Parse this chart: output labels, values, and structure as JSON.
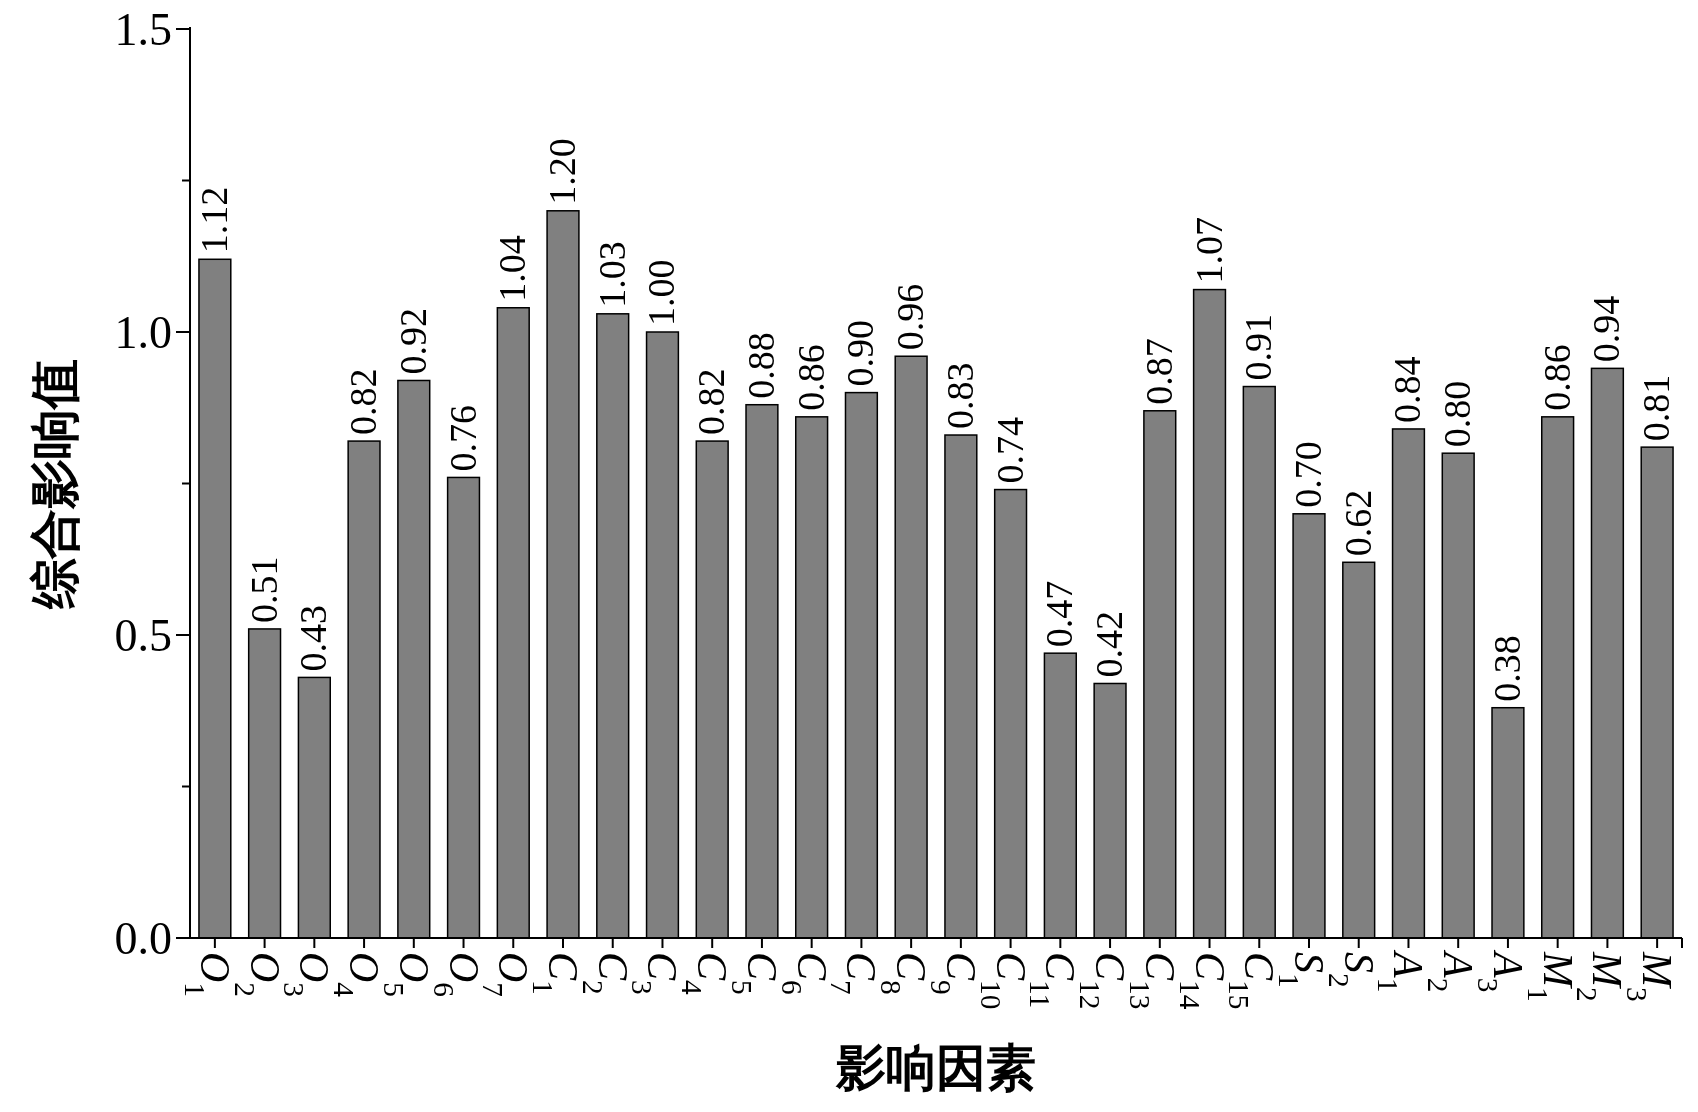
{
  "chart_data": {
    "type": "bar",
    "xlabel": "影响因素",
    "ylabel": "综合影响值",
    "categories": [
      "O$_{1}$",
      "O$_{2}$",
      "O$_{3}$",
      "O$_{4}$",
      "O$_{5}$",
      "O$_{6}$",
      "O$_{7}$",
      "C$_{1}$",
      "C$_{2}$",
      "C$_{3}$",
      "C$_{4}$",
      "C$_{5}$",
      "C$_{6}$",
      "C$_{7}$",
      "C$_{8}$",
      "C$_{9}$",
      "C$_{10}$",
      "C$_{11}$",
      "C$_{12}$",
      "C$_{13}$",
      "C$_{14}$",
      "C$_{15}$",
      "S$_{1}$",
      "S$_{2}$",
      "A$_{1}$",
      "A$_{2}$",
      "A$_{3}$",
      "M$_{1}$",
      "M$_{2}$",
      "M$_{3}$"
    ],
    "values": [
      1.12,
      0.51,
      0.43,
      0.82,
      0.92,
      0.76,
      1.04,
      1.2,
      1.03,
      1.0,
      0.82,
      0.88,
      0.86,
      0.9,
      0.96,
      0.83,
      0.74,
      0.47,
      0.42,
      0.87,
      1.07,
      0.91,
      0.7,
      0.62,
      0.84,
      0.8,
      0.38,
      0.86,
      0.94,
      0.81
    ],
    "value_labels": [
      "1.12",
      "0.51",
      "0.43",
      "0.82",
      "0.92",
      "0.76",
      "1.04",
      "1.20",
      "1.03",
      "1.00",
      "0.82",
      "0.88",
      "0.86",
      "0.90",
      "0.96",
      "0.83",
      "0.74",
      "0.47",
      "0.42",
      "0.87",
      "1.07",
      "0.91",
      "0.70",
      "0.62",
      "0.84",
      "0.80",
      "0.38",
      "0.86",
      "0.94",
      "0.81"
    ],
    "color": "#808080",
    "ylim": [
      0,
      1.5
    ],
    "yticks": [
      {
        "value": 0,
        "label": "0.0"
      },
      {
        "value": 0.25,
        "label": null
      },
      {
        "value": 0.5,
        "label": "0.5"
      },
      {
        "value": 0.75,
        "label": null
      },
      {
        "value": 1.0,
        "label": "1.0"
      },
      {
        "value": 1.25,
        "label": null
      },
      {
        "value": 1.5,
        "label": "1.5"
      }
    ],
    "grid": false
  }
}
